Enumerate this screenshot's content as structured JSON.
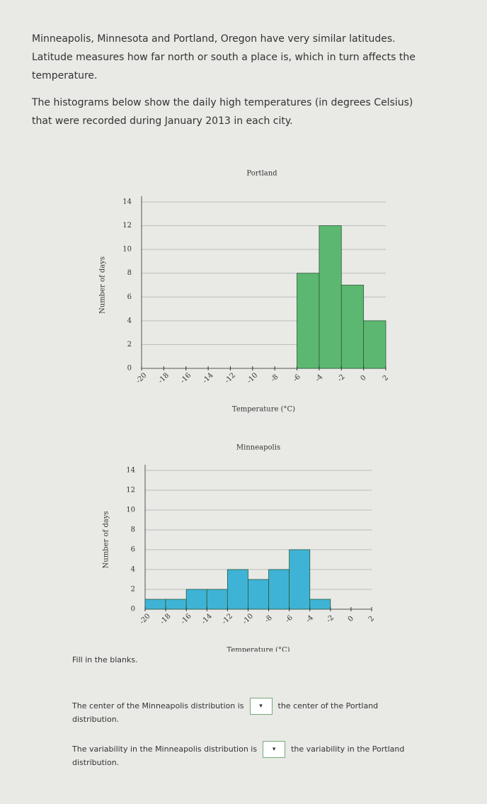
{
  "intro": [
    "Minneapolis, Minnesota and Portland, Oregon have very similar latitudes. Latitude measures how far north or south a place is, which in turn affects the temperature.",
    "The histograms below show the daily high temperatures (in degrees Celsius) that were recorded during January 2013 in each city."
  ],
  "chart_data": [
    {
      "type": "histogram",
      "title": "Portland",
      "xlabel": "Temperature (°C)",
      "ylabel": "Number of days",
      "color": "#5cb870",
      "bins": [
        -20,
        -18,
        -16,
        -14,
        -12,
        -10,
        -8,
        -6,
        -4,
        -2,
        0,
        2
      ],
      "values": [
        0,
        0,
        0,
        0,
        0,
        0,
        0,
        8,
        12,
        7,
        4
      ],
      "xticks": [
        -20,
        -18,
        -16,
        -14,
        -12,
        -10,
        -8,
        -6,
        -4,
        -2,
        0,
        2
      ],
      "ylim": [
        0,
        14
      ],
      "yticks": [
        0,
        2,
        4,
        6,
        8,
        10,
        12,
        14
      ],
      "grid": true
    },
    {
      "type": "histogram",
      "title": "Minneapolis",
      "xlabel": "Temperature (°C)",
      "ylabel": "Number of days",
      "color": "#3fb3d6",
      "bins": [
        -20,
        -18,
        -16,
        -14,
        -12,
        -10,
        -8,
        -6,
        -4,
        -2,
        0,
        2
      ],
      "values": [
        1,
        1,
        2,
        2,
        4,
        3,
        4,
        6,
        1,
        0,
        0
      ],
      "xticks": [
        -20,
        -18,
        -16,
        -14,
        -12,
        -10,
        -8,
        -6,
        -4,
        -2,
        0,
        2
      ],
      "ylim": [
        0,
        14
      ],
      "yticks": [
        0,
        2,
        4,
        6,
        8,
        10,
        12,
        14
      ],
      "grid": true
    }
  ],
  "instructions": "Fill in the blanks.",
  "questions": [
    {
      "before": "The center of the Minneapolis distribution is",
      "after": "the center of the Portland distribution."
    },
    {
      "before": "The variability in the Minneapolis distribution is",
      "after": "the variability in the Portland distribution."
    }
  ]
}
